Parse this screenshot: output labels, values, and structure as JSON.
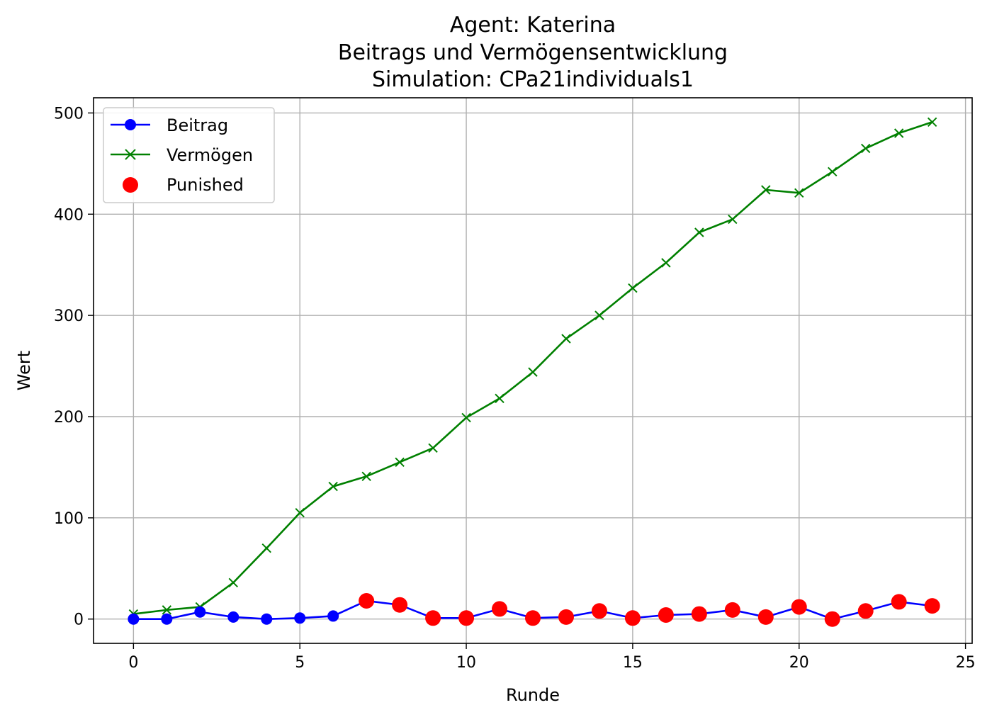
{
  "chart_data": {
    "type": "line",
    "title_lines": [
      "Agent: Katerina",
      "Beitrags und Vermögensentwicklung",
      "Simulation: CPa21individuals1"
    ],
    "xlabel": "Runde",
    "ylabel": "Wert",
    "xlim": [
      -1.2,
      25.2
    ],
    "ylim": [
      -24,
      515
    ],
    "x_ticks": [
      0,
      5,
      10,
      15,
      20,
      25
    ],
    "y_ticks": [
      0,
      100,
      200,
      300,
      400,
      500
    ],
    "grid": true,
    "legend_position": "top-left",
    "x": [
      0,
      1,
      2,
      3,
      4,
      5,
      6,
      7,
      8,
      9,
      10,
      11,
      12,
      13,
      14,
      15,
      16,
      17,
      18,
      19,
      20,
      21,
      22,
      23,
      24
    ],
    "series": [
      {
        "name": "Beitrag",
        "marker": "circle",
        "color": "#0000ff",
        "values": [
          0,
          0,
          7,
          2,
          0,
          1,
          3,
          18,
          14,
          1,
          1,
          10,
          1,
          2,
          8,
          1,
          4,
          5,
          9,
          2,
          12,
          0,
          8,
          17,
          13
        ]
      },
      {
        "name": "Vermögen",
        "marker": "x",
        "color": "#008000",
        "values": [
          5,
          9,
          12,
          36,
          70,
          105,
          131,
          141,
          155,
          169,
          199,
          218,
          244,
          277,
          300,
          327,
          352,
          382,
          395,
          424,
          421,
          442,
          465,
          480,
          491
        ]
      }
    ],
    "punished": {
      "name": "Punished",
      "color": "#ff0000",
      "x": [
        7,
        8,
        9,
        10,
        11,
        12,
        13,
        14,
        15,
        16,
        17,
        18,
        19,
        20,
        21,
        22,
        23,
        24
      ],
      "y": [
        18,
        14,
        1,
        1,
        10,
        1,
        2,
        8,
        1,
        4,
        5,
        9,
        2,
        12,
        0,
        8,
        17,
        13
      ]
    }
  }
}
